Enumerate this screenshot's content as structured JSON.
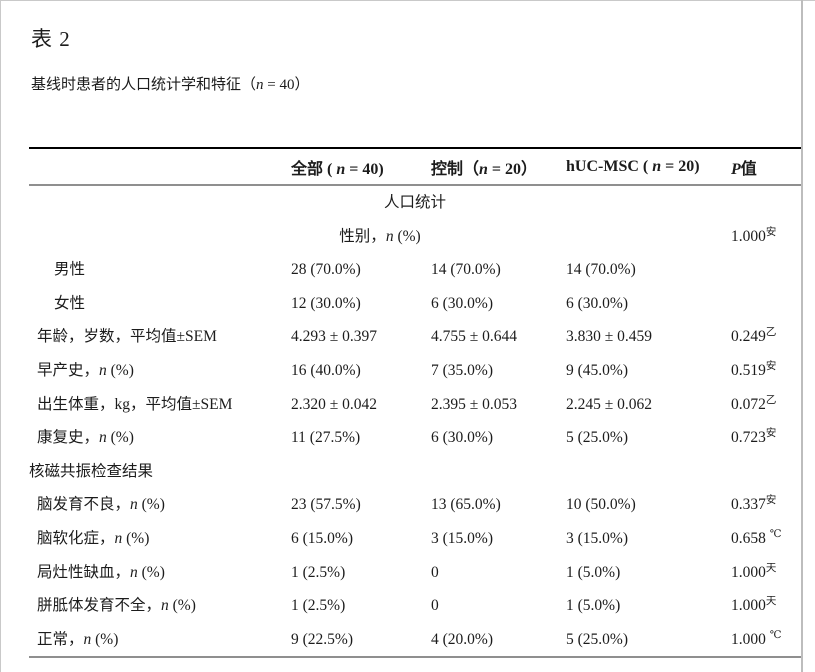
{
  "page": {
    "title": "表 2",
    "subtitle": [
      "基线时患者的人口统计学和特征（",
      {
        "i": "n"
      },
      " = 40）"
    ]
  },
  "colors": {
    "text": "#1c1c1c",
    "top_rule": "#000000",
    "gray_rule": "#8f8f8f",
    "page_edge": "#c9c9c9"
  },
  "table": {
    "columns": [
      {
        "id": "label",
        "segments": []
      },
      {
        "id": "all",
        "segments": [
          "全部 ( ",
          {
            "i": "n"
          },
          " = 40)"
        ]
      },
      {
        "id": "control",
        "segments": [
          "控制（",
          {
            "i": "n"
          },
          " = 20）"
        ]
      },
      {
        "id": "huc-msc",
        "segments": [
          "hUC-MSC ( ",
          {
            "i": "n"
          },
          " = 20)"
        ]
      },
      {
        "id": "p-value",
        "segments": [
          {
            "i": "P"
          },
          "值"
        ]
      }
    ],
    "rows": [
      {
        "type": "center-full",
        "label": [
          "人口统计"
        ]
      },
      {
        "type": "center-span",
        "label": [
          "性别，",
          {
            "i": "n"
          },
          " (%)"
        ],
        "p": {
          "value": "1.000",
          "sup": "安"
        }
      },
      {
        "type": "data",
        "indent": 2,
        "label": [
          "男性"
        ],
        "values": [
          "28 (70.0%)",
          "14 (70.0%)",
          "14 (70.0%)"
        ],
        "p": null
      },
      {
        "type": "data",
        "indent": 2,
        "label": [
          "女性"
        ],
        "values": [
          "12 (30.0%)",
          "6 (30.0%)",
          "6 (30.0%)"
        ],
        "p": null
      },
      {
        "type": "data",
        "indent": 1,
        "label": [
          "年龄，岁数，平均值±SEM"
        ],
        "values": [
          "4.293 ± 0.397",
          "4.755 ± 0.644",
          "3.830 ± 0.459"
        ],
        "p": {
          "value": "0.249",
          "sup": "乙"
        }
      },
      {
        "type": "data",
        "indent": 1,
        "label": [
          "早产史，",
          {
            "i": "n"
          },
          " (%)"
        ],
        "values": [
          "16 (40.0%)",
          "7 (35.0%)",
          "9 (45.0%)"
        ],
        "p": {
          "value": "0.519",
          "sup": "安"
        }
      },
      {
        "type": "data",
        "indent": 1,
        "label": [
          "出生体重，kg，平均值±SEM"
        ],
        "values": [
          "2.320 ± 0.042",
          "2.395 ± 0.053",
          "2.245 ± 0.062"
        ],
        "p": {
          "value": "0.072",
          "sup": "乙"
        }
      },
      {
        "type": "data",
        "indent": 1,
        "label": [
          "康复史，",
          {
            "i": "n"
          },
          " (%)"
        ],
        "values": [
          "11 (27.5%)",
          "6 (30.0%)",
          "5 (25.0%)"
        ],
        "p": {
          "value": "0.723",
          "sup": "安"
        }
      },
      {
        "type": "section",
        "indent": 0,
        "label": [
          "核磁共振检查结果"
        ]
      },
      {
        "type": "data",
        "indent": 1,
        "label": [
          "脑发育不良，",
          {
            "i": "n"
          },
          " (%)"
        ],
        "values": [
          "23 (57.5%)",
          "13 (65.0%)",
          "10 (50.0%)"
        ],
        "p": {
          "value": "0.337",
          "sup": "安"
        }
      },
      {
        "type": "data",
        "indent": 1,
        "label": [
          "脑软化症，",
          {
            "i": "n"
          },
          " (%)"
        ],
        "values": [
          "6 (15.0%)",
          "3 (15.0%)",
          "3 (15.0%)"
        ],
        "p": {
          "value": "0.658",
          "sup": "℃",
          "space": true
        }
      },
      {
        "type": "data",
        "indent": 1,
        "label": [
          "局灶性缺血，",
          {
            "i": "n"
          },
          " (%)"
        ],
        "values": [
          "1 (2.5%)",
          "0",
          "1 (5.0%)"
        ],
        "p": {
          "value": "1.000",
          "sup": "天"
        }
      },
      {
        "type": "data",
        "indent": 1,
        "label": [
          "胼胝体发育不全，",
          {
            "i": "n"
          },
          " (%)"
        ],
        "values": [
          "1 (2.5%)",
          "0",
          "1 (5.0%)"
        ],
        "p": {
          "value": "1.000",
          "sup": "天"
        }
      },
      {
        "type": "data",
        "indent": 1,
        "label": [
          "正常，",
          {
            "i": "n"
          },
          " (%)"
        ],
        "values": [
          "9 (22.5%)",
          "4 (20.0%)",
          "5 (25.0%)"
        ],
        "p": {
          "value": "1.000",
          "sup": "℃",
          "space": true
        }
      }
    ]
  }
}
